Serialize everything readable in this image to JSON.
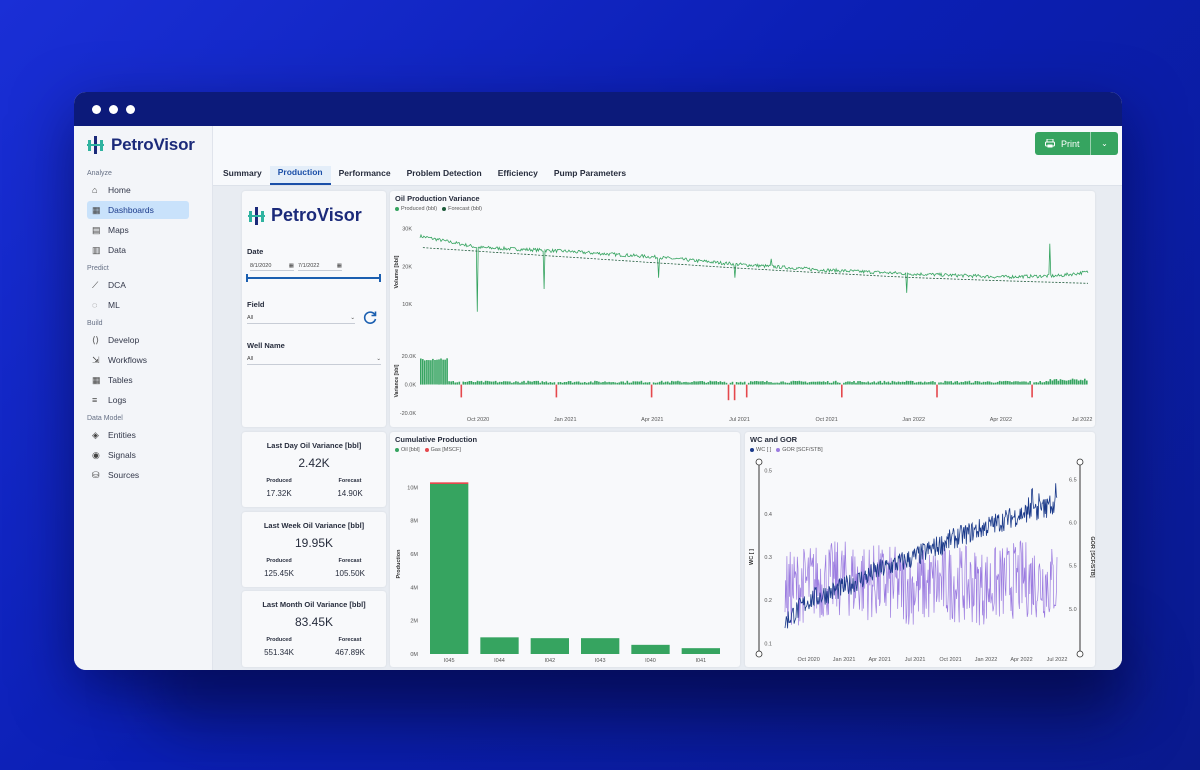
{
  "app": {
    "brand": "PetroVisor"
  },
  "sidebar": {
    "sections": [
      {
        "title": "Analyze",
        "items": [
          {
            "label": "Home",
            "icon": "home-icon"
          },
          {
            "label": "Dashboards",
            "icon": "dashboards-icon",
            "active": true
          },
          {
            "label": "Maps",
            "icon": "map-icon"
          },
          {
            "label": "Data",
            "icon": "table-icon"
          }
        ]
      },
      {
        "title": "Predict",
        "items": [
          {
            "label": "DCA",
            "icon": "chart-icon"
          },
          {
            "label": "ML",
            "icon": "bulb-icon"
          }
        ]
      },
      {
        "title": "Build",
        "items": [
          {
            "label": "Develop",
            "icon": "code-icon"
          },
          {
            "label": "Workflows",
            "icon": "workflow-icon"
          },
          {
            "label": "Tables",
            "icon": "grid-icon"
          },
          {
            "label": "Logs",
            "icon": "log-icon"
          }
        ]
      },
      {
        "title": "Data Model",
        "items": [
          {
            "label": "Entities",
            "icon": "layers-icon"
          },
          {
            "label": "Signals",
            "icon": "signal-icon"
          },
          {
            "label": "Sources",
            "icon": "database-icon"
          }
        ]
      }
    ]
  },
  "toolbar": {
    "print_label": "Print"
  },
  "tabs": [
    {
      "label": "Summary"
    },
    {
      "label": "Production",
      "active": true
    },
    {
      "label": "Performance"
    },
    {
      "label": "Problem Detection"
    },
    {
      "label": "Efficiency"
    },
    {
      "label": "Pump Parameters"
    }
  ],
  "filters": {
    "brand": "PetroVisor",
    "date_label": "Date",
    "date_from": "8/1/2020",
    "date_to": "7/1/2022",
    "field_label": "Field",
    "field_value": "All",
    "well_label": "Well Name",
    "well_value": "All"
  },
  "kpis": [
    {
      "title": "Last Day Oil Variance [bbl]",
      "value": "2.42K",
      "produced_label": "Produced",
      "produced": "17.32K",
      "forecast_label": "Forecast",
      "forecast": "14.90K"
    },
    {
      "title": "Last Week Oil Variance [bbl]",
      "value": "19.95K",
      "produced_label": "Produced",
      "produced": "125.45K",
      "forecast_label": "Forecast",
      "forecast": "105.50K"
    },
    {
      "title": "Last Month Oil Variance [bbl]",
      "value": "83.45K",
      "produced_label": "Produced",
      "produced": "551.34K",
      "forecast_label": "Forecast",
      "forecast": "467.89K"
    }
  ],
  "colors": {
    "green": "#36a460",
    "red": "#e5484d",
    "navy": "#1b3a8a",
    "purple": "#9b7be0",
    "accent": "#1b4fa8"
  },
  "chart_data": [
    {
      "type": "line",
      "title": "Oil Production Variance",
      "legend": [
        "Produced (bbl)",
        "Forecast (bbl)"
      ],
      "ylabel": "Volume [bbl]",
      "yticks": [
        "30K",
        "20K",
        "10K"
      ],
      "ylim": [
        5000,
        32000
      ],
      "x_ticks": [
        "Oct 2020",
        "Jan 2021",
        "Apr 2021",
        "Jul 2021",
        "Oct 2021",
        "Jan 2022",
        "Apr 2022",
        "Jul 2022"
      ],
      "series": [
        {
          "name": "Produced (bbl)",
          "x": [
            "2020-08",
            "2020-10",
            "2021-01",
            "2021-04",
            "2021-07",
            "2021-10",
            "2022-01",
            "2022-04",
            "2022-06",
            "2022-07"
          ],
          "values": [
            28000,
            25000,
            24000,
            22500,
            20500,
            19000,
            18000,
            17200,
            17500,
            18500
          ]
        },
        {
          "name": "Forecast (bbl)",
          "x": [
            "2020-08",
            "2020-10",
            "2021-01",
            "2021-04",
            "2021-07",
            "2021-10",
            "2022-01",
            "2022-04",
            "2022-07"
          ],
          "values": [
            25000,
            24000,
            22500,
            21000,
            19500,
            18200,
            17000,
            16200,
            15500
          ]
        }
      ]
    },
    {
      "type": "bar",
      "ylabel": "Variance [bbl]",
      "yticks": [
        "20.0K",
        "0.0K",
        "-20.0K"
      ],
      "ylim": [
        -20000,
        25000
      ],
      "note": "daily variance; large positive at start, small spikes otherwise"
    },
    {
      "type": "bar",
      "title": "Cumulative Production",
      "legend": [
        "Oil [bbl]",
        "Gas [MSCF]"
      ],
      "ylabel": "Production",
      "yticks": [
        "10M",
        "8M",
        "6M",
        "4M",
        "2M",
        "0M"
      ],
      "ylim": [
        0,
        10800000
      ],
      "categories": [
        "I045",
        "I044",
        "I042",
        "I043",
        "I040",
        "I041"
      ],
      "series": [
        {
          "name": "Oil [bbl]",
          "values": [
            10200000,
            1000000,
            950000,
            950000,
            550000,
            350000
          ]
        },
        {
          "name": "Gas [MSCF]",
          "values": [
            100000,
            0,
            0,
            0,
            0,
            0
          ]
        }
      ]
    },
    {
      "type": "line",
      "title": "WC and GOR",
      "legend": [
        "WC [ ]",
        "GOR [SCF/STB]"
      ],
      "ylabel": "WC [ ]",
      "y2label": "GOR [SCF/STB]",
      "yticks": [
        "0.5",
        "0.4",
        "0.3",
        "0.2",
        "0.1"
      ],
      "y2ticks": [
        "6.5",
        "6.0",
        "5.5",
        "5.0"
      ],
      "x_ticks": [
        "Oct 2020",
        "Jan 2021",
        "Apr 2021",
        "Jul 2021",
        "Oct 2021",
        "Jan 2022",
        "Apr 2022",
        "Jul 2022"
      ],
      "series": [
        {
          "name": "WC [ ]",
          "x": [
            "2020-08",
            "2020-10",
            "2021-01",
            "2021-04",
            "2021-07",
            "2021-10",
            "2022-01",
            "2022-04",
            "2022-07"
          ],
          "values": [
            0.15,
            0.2,
            0.23,
            0.27,
            0.3,
            0.34,
            0.37,
            0.4,
            0.42
          ]
        },
        {
          "name": "GOR [SCF/STB]",
          "x": [
            "2020-08",
            "2020-10",
            "2021-01",
            "2021-04",
            "2021-07",
            "2021-10",
            "2022-01",
            "2022-04",
            "2022-07"
          ],
          "values": [
            5.2,
            5.3,
            5.35,
            5.3,
            5.25,
            5.3,
            5.25,
            5.35,
            5.3
          ]
        }
      ]
    }
  ]
}
